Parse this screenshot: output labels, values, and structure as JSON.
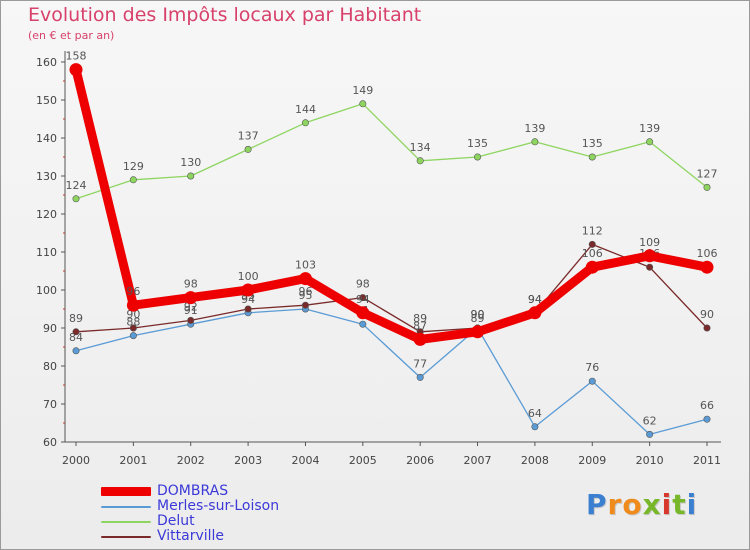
{
  "title": "Evolution des Impôts locaux par Habitant",
  "subtitle": "(en € et par an)",
  "logo_text": "Proxiti",
  "chart_data": {
    "type": "line",
    "x": [
      "2000",
      "2001",
      "2002",
      "2003",
      "2004",
      "2005",
      "2006",
      "2007",
      "2008",
      "2009",
      "2010",
      "2011"
    ],
    "ylim": [
      60,
      160
    ],
    "yticks": [
      "60",
      "70",
      "80",
      "90",
      "100",
      "110",
      "120",
      "130",
      "140",
      "150",
      "160"
    ],
    "grid": false,
    "legend_position": "bottom-left",
    "series": [
      {
        "name": "DOMBRAS",
        "color": "#ee0000",
        "values": [
          158,
          96,
          98,
          100,
          103,
          94,
          87,
          89,
          94,
          106,
          109,
          106
        ]
      },
      {
        "name": "Merles-sur-Loison",
        "color": "#5b9bd5",
        "values": [
          84,
          88,
          91,
          94,
          95,
          91,
          77,
          90,
          64,
          76,
          62,
          66
        ]
      },
      {
        "name": "Delut",
        "color": "#8ed560",
        "values": [
          124,
          129,
          130,
          137,
          144,
          149,
          134,
          135,
          139,
          135,
          139,
          127
        ]
      },
      {
        "name": "Vittarville",
        "color": "#7a2a2a",
        "values": [
          89,
          90,
          92,
          95,
          96,
          98,
          89,
          90,
          94,
          112,
          106,
          90
        ]
      }
    ]
  }
}
